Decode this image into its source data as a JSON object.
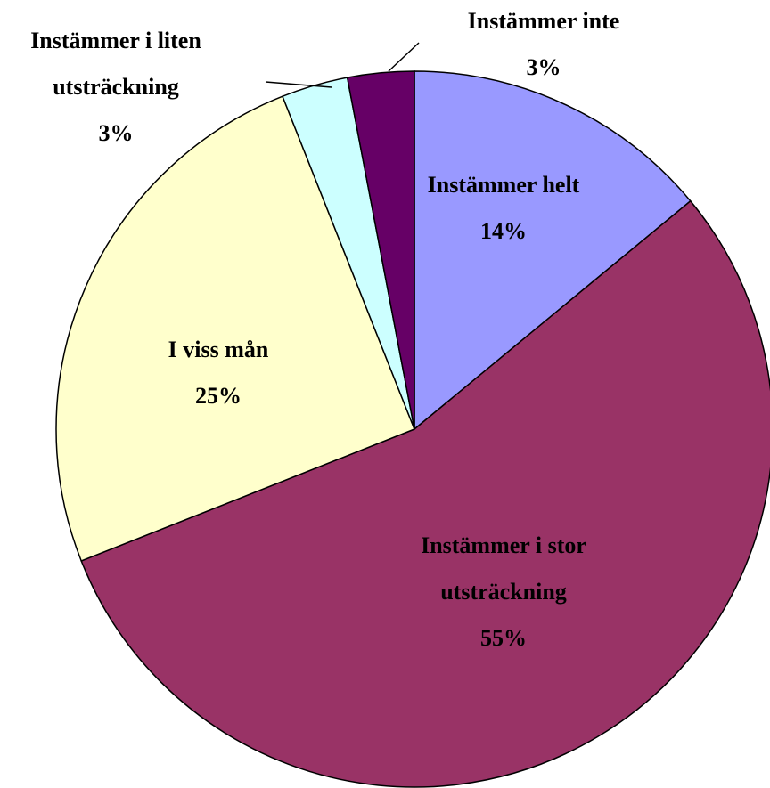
{
  "chart_data": {
    "type": "pie",
    "categories": [
      "Instämmer helt",
      "Instämmer i stor utsträckning",
      "I viss mån",
      "Instämmer i liten utsträckning",
      "Instämmer inte"
    ],
    "values": [
      14,
      55,
      25,
      3,
      3
    ],
    "value_labels": [
      "14%",
      "55%",
      "25%",
      "3%",
      "3%"
    ],
    "colors": [
      "#9999ff",
      "#993366",
      "#ffffcc",
      "#ccffff",
      "#660066"
    ]
  }
}
